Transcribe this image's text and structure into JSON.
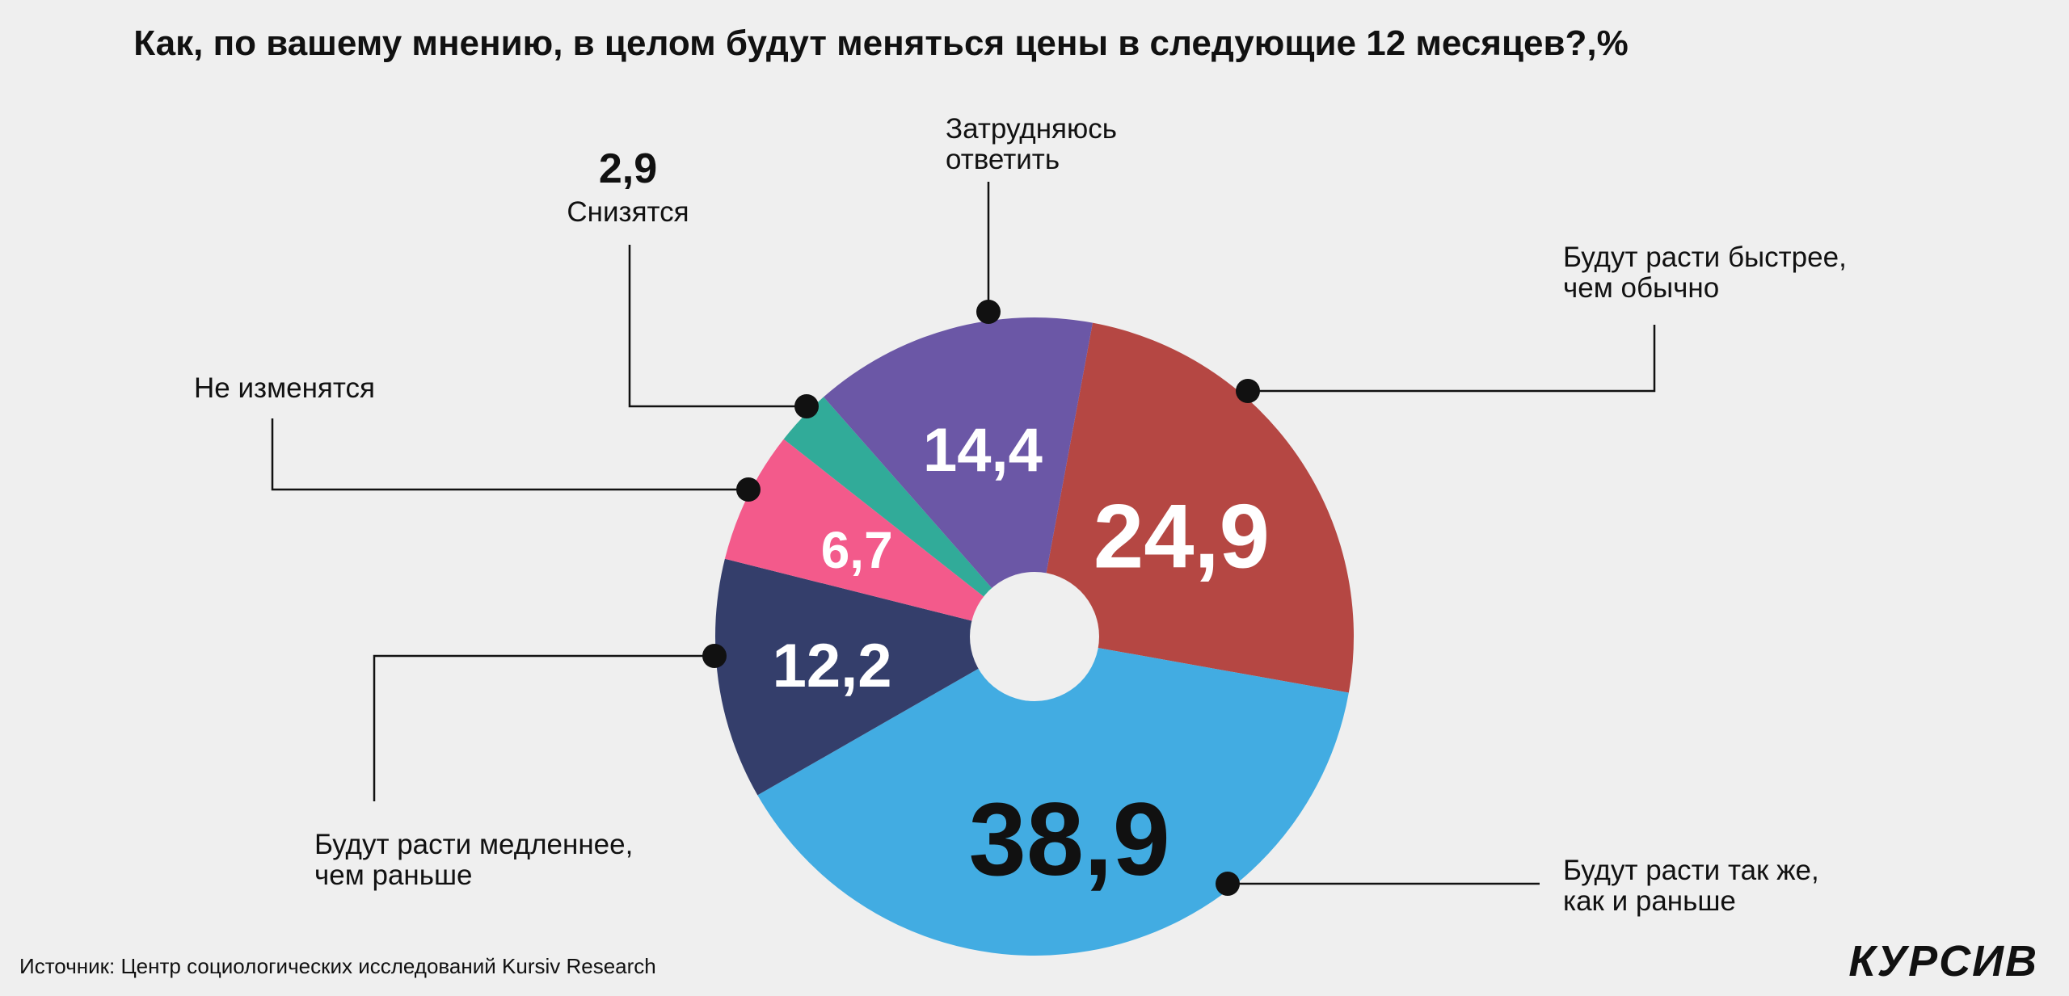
{
  "chart_data": {
    "type": "pie",
    "variant": "donut",
    "title": "Как, по вашему мнению, в целом будут меняться цены в следующие 12 месяцев?,%",
    "slices": [
      {
        "label": "Будут расти быстрее, чем обычно",
        "lines": [
          "Будут расти быстрее,",
          "чем обычно"
        ],
        "value": 24.9,
        "display": "24,9",
        "color": "#b54743",
        "value_color": "#ffffff"
      },
      {
        "label": "Будут расти так же, как и раньше",
        "lines": [
          "Будут расти так же,",
          "как и раньше"
        ],
        "value": 38.9,
        "display": "38,9",
        "color": "#42ace2",
        "value_color": "#111111"
      },
      {
        "label": "Будут расти медленнее, чем раньше",
        "lines": [
          "Будут расти медленнее,",
          "чем раньше"
        ],
        "value": 12.2,
        "display": "12,2",
        "color": "#343e6b",
        "value_color": "#ffffff"
      },
      {
        "label": "Не изменятся",
        "lines": [
          "Не изменятся"
        ],
        "value": 6.7,
        "display": "6,7",
        "color": "#f35a8b",
        "value_color": "#ffffff"
      },
      {
        "label": "Снизятся",
        "lines": [
          "Снизятся"
        ],
        "value": 2.9,
        "display": "2,9",
        "color": "#31ab99",
        "value_color": "#ffffff"
      },
      {
        "label": "Затрудняюсь ответить",
        "lines": [
          "Затрудняюсь",
          "ответить"
        ],
        "value": 14.4,
        "display": "14,4",
        "color": "#6b57a6",
        "value_color": "#ffffff"
      }
    ]
  },
  "source": "Источник: Центр социологических исследований Kursiv Research",
  "logo": "КУРСИВ",
  "background": "#efefef"
}
